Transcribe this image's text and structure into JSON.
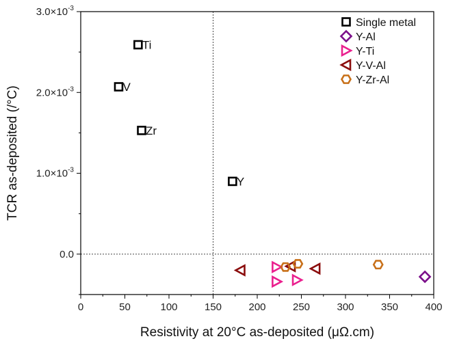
{
  "chart_data": {
    "type": "scatter",
    "xlabel": "Resistivity at 20°C as-deposited (μΩ.cm)",
    "ylabel": "TCR as-deposited (/°C)",
    "xlim": [
      0,
      400
    ],
    "ylim": [
      -0.0005,
      0.003
    ],
    "xticks": [
      "0",
      "50",
      "100",
      "150",
      "200",
      "250",
      "300",
      "350",
      "400"
    ],
    "yticks": [
      {
        "value": 0.003,
        "main": "3.0×10",
        "exp": "-3"
      },
      {
        "value": 0.002,
        "main": "2.0×10",
        "exp": "-3"
      },
      {
        "value": 0.001,
        "main": "1.0×10",
        "exp": "-3"
      },
      {
        "value": 0.0,
        "main": "0.0",
        "exp": ""
      }
    ],
    "reference_lines": {
      "x": 150,
      "y": 0
    },
    "legend": "top-right",
    "grid": false,
    "series": [
      {
        "name": "Single metal",
        "marker": "square",
        "color": "#000000",
        "points": [
          {
            "x": 65,
            "y": 0.00259,
            "label": "Ti"
          },
          {
            "x": 43,
            "y": 0.00207,
            "label": "V"
          },
          {
            "x": 69,
            "y": 0.00153,
            "label": "Zr"
          },
          {
            "x": 172,
            "y": 0.0009,
            "label": "Y"
          }
        ]
      },
      {
        "name": "Y-Al",
        "marker": "diamond",
        "color": "#7b0f8a",
        "points": [
          {
            "x": 390,
            "y": -0.00028
          }
        ]
      },
      {
        "name": "Y-Ti",
        "marker": "triangle-right",
        "color": "#ea1f8e",
        "points": [
          {
            "x": 222,
            "y": -0.00016
          },
          {
            "x": 222,
            "y": -0.00034
          },
          {
            "x": 245,
            "y": -0.00032
          }
        ]
      },
      {
        "name": "Y-V-Al",
        "marker": "triangle-left",
        "color": "#8b0d0d",
        "points": [
          {
            "x": 181,
            "y": -0.0002
          },
          {
            "x": 238,
            "y": -0.00015
          },
          {
            "x": 266,
            "y": -0.00018
          }
        ]
      },
      {
        "name": "Y-Zr-Al",
        "marker": "hexagon",
        "color": "#c87019",
        "points": [
          {
            "x": 232,
            "y": -0.00016
          },
          {
            "x": 246,
            "y": -0.00012
          },
          {
            "x": 337,
            "y": -0.00013
          }
        ]
      }
    ]
  }
}
